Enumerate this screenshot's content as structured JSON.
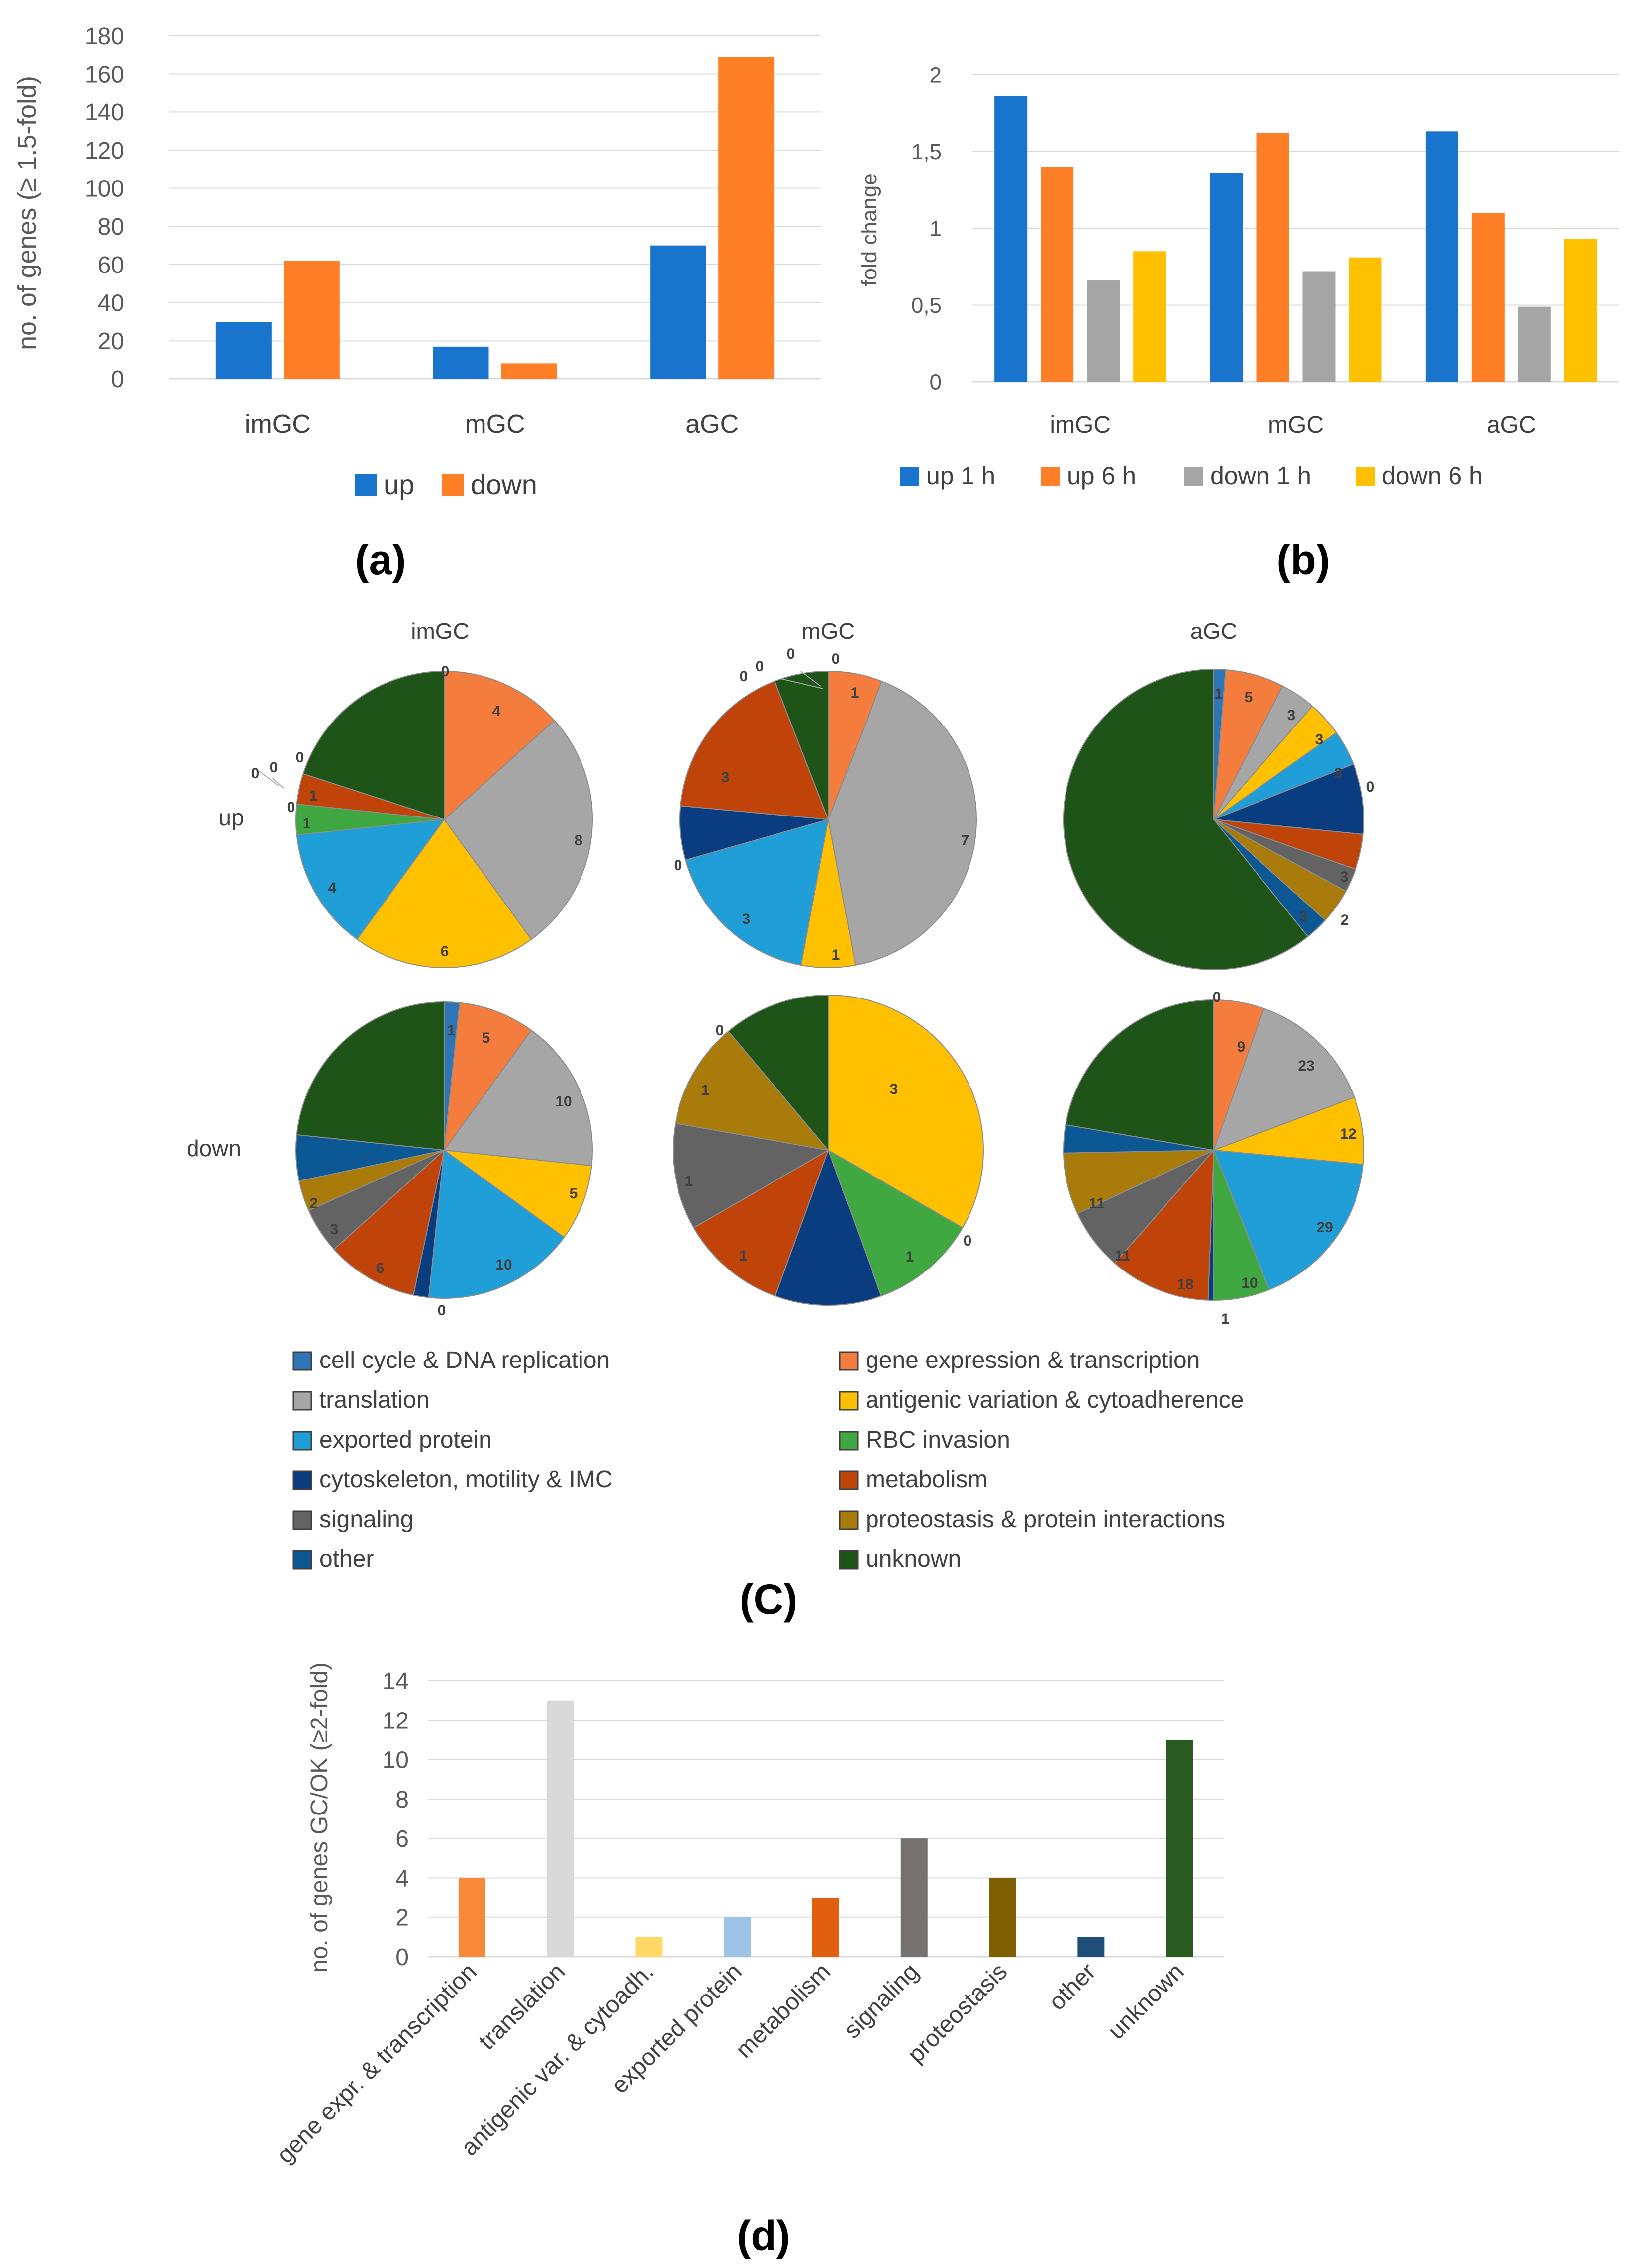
{
  "chart_data": [
    {
      "id": "a",
      "type": "bar",
      "panel_label": "(a)",
      "categories": [
        "imGC",
        "mGC",
        "aGC"
      ],
      "series": [
        {
          "name": "up",
          "color": "#1874CD",
          "values": [
            30,
            17,
            70
          ]
        },
        {
          "name": "down",
          "color": "#FF7F27",
          "values": [
            62,
            8,
            169
          ]
        }
      ],
      "ylabel": "no. of  genes (≥ 1.5-fold)",
      "ylim": [
        0,
        180
      ],
      "yticks": [
        "0",
        "20",
        "40",
        "60",
        "80",
        "100",
        "120",
        "140",
        "160",
        "180"
      ],
      "legend_position": "bottom"
    },
    {
      "id": "b",
      "type": "bar",
      "panel_label": "(b)",
      "categories": [
        "imGC",
        "mGC",
        "aGC"
      ],
      "series": [
        {
          "name": "up 1 h",
          "color": "#1874CD",
          "values": [
            1.86,
            1.36,
            1.63
          ]
        },
        {
          "name": "up 6 h",
          "color": "#FF7F27",
          "values": [
            1.4,
            1.62,
            1.1
          ]
        },
        {
          "name": "down 1 h",
          "color": "#A5A5A5",
          "values": [
            0.66,
            0.72,
            0.49
          ]
        },
        {
          "name": "down 6 h",
          "color": "#FFC000",
          "values": [
            0.85,
            0.81,
            0.93
          ]
        }
      ],
      "ylabel": "fold change",
      "ylim": [
        0,
        2
      ],
      "yticks": [
        "0",
        "0,5",
        "1",
        "1,5",
        "2"
      ],
      "legend_position": "bottom"
    },
    {
      "id": "c",
      "type": "pie",
      "panel_label": "(C)",
      "row_labels": [
        "up",
        "down"
      ],
      "column_labels": [
        "imGC",
        "mGC",
        "aGC"
      ],
      "categories": [
        "cell cycle & DNA replication",
        "gene expression & transcription",
        "translation",
        "antigenic variation & cytoadherence",
        "exported protein",
        "RBC invasion",
        "cytoskeleton, motility & IMC",
        "metabolism",
        "signaling",
        "proteostasis & protein interactions",
        "other",
        "unknown"
      ],
      "category_colors": [
        "#2E75B6",
        "#F47C3C",
        "#A6A6A6",
        "#FFC000",
        "#1F9ED8",
        "#40A840",
        "#0A3C80",
        "#C0440A",
        "#636363",
        "#A87B0A",
        "#0B5894",
        "#1E5418"
      ],
      "pies": [
        {
          "row": "up",
          "column": "imGC",
          "values": [
            0,
            4,
            8,
            6,
            4,
            1,
            0,
            1,
            0,
            0,
            0,
            6
          ]
        },
        {
          "row": "up",
          "column": "mGC",
          "values": [
            0,
            1,
            7,
            1,
            3,
            0,
            1,
            3,
            0,
            0,
            0,
            1
          ]
        },
        {
          "row": "up",
          "column": "aGC",
          "values": [
            1,
            5,
            3,
            3,
            3,
            0,
            6,
            3,
            2,
            3,
            2,
            48
          ]
        },
        {
          "row": "down",
          "column": "imGC",
          "values": [
            1,
            5,
            10,
            5,
            10,
            0,
            1,
            6,
            3,
            2,
            3,
            14
          ]
        },
        {
          "row": "down",
          "column": "mGC",
          "values": [
            0,
            0,
            0,
            3,
            0,
            1,
            1,
            1,
            1,
            1,
            0,
            1
          ]
        },
        {
          "row": "down",
          "column": "aGC",
          "values": [
            0,
            9,
            23,
            12,
            29,
            10,
            1,
            18,
            11,
            11,
            5,
            37
          ]
        }
      ],
      "slice_labels_up_imGC": [
        "0",
        "4",
        "8",
        "6",
        "4",
        "1",
        "0",
        "1",
        "0",
        "0",
        "0"
      ],
      "slice_labels_up_mGC": [
        "0",
        "1",
        "7",
        "1",
        "3",
        "0",
        "3",
        "0",
        "0",
        "0"
      ],
      "slice_labels_up_aGC": [
        "1",
        "5",
        "3",
        "3",
        "3",
        "0",
        "3",
        "2",
        "3"
      ],
      "slice_labels_down_imGC": [
        "1",
        "5",
        "10",
        "5",
        "10",
        "0",
        "6",
        "3",
        "2"
      ],
      "slice_labels_down_mGC": [
        "3",
        "0",
        "1",
        "1",
        "1",
        "1",
        "0"
      ],
      "slice_labels_down_aGC": [
        "0",
        "9",
        "23",
        "12",
        "29",
        "10",
        "1",
        "18",
        "11",
        "11"
      ]
    },
    {
      "id": "d",
      "type": "bar",
      "panel_label": "(d)",
      "categories": [
        "gene expr. & transcription",
        "translation",
        "antigenic var. & cytoadh.",
        "exported protein",
        "metabolism",
        "signaling",
        "proteostasis",
        "other",
        "unknown"
      ],
      "values": [
        4,
        13,
        1,
        2,
        3,
        6,
        4,
        1,
        11
      ],
      "colors": [
        "#F8893A",
        "#D9D9D9",
        "#FFD966",
        "#9DC3E6",
        "#E06010",
        "#767171",
        "#7F6000",
        "#1F4E79",
        "#295A20"
      ],
      "ylabel": "no. of genes GC/OK (≥2-fold)",
      "ylim": [
        0,
        14
      ],
      "yticks": [
        "0",
        "2",
        "4",
        "6",
        "8",
        "10",
        "12",
        "14"
      ]
    }
  ]
}
